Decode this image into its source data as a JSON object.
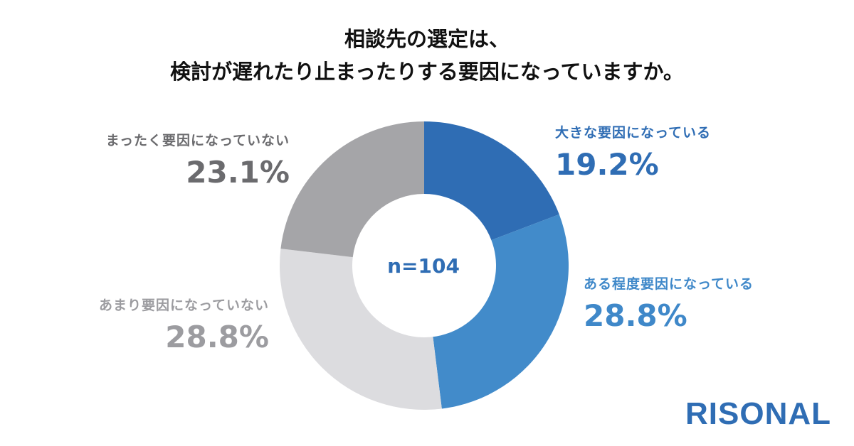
{
  "title_lines": [
    "相談先の選定は、",
    "検討が遅れたり止まったりする要因になっていますか。"
  ],
  "chart_data": {
    "type": "pie",
    "donut": true,
    "categories": [
      "大きな要因になっている",
      "ある程度要因になっている",
      "あまり要因になっていない",
      "まったく要因になっていない"
    ],
    "values": [
      19.2,
      28.8,
      28.8,
      23.1
    ],
    "value_labels": [
      "19.2%",
      "28.8%",
      "28.8%",
      "23.1%"
    ],
    "colors": [
      "#2f6db4",
      "#428bca",
      "#dcdcdf",
      "#a5a5a8"
    ],
    "label_colors": [
      "#2f6db4",
      "#3f88c9",
      "#9c9ca0",
      "#6b6b6e"
    ],
    "center_label": "n=104",
    "center_label_color": "#2f6db4"
  },
  "brand": {
    "name": "RISONAL",
    "color": "#2f6db4"
  }
}
